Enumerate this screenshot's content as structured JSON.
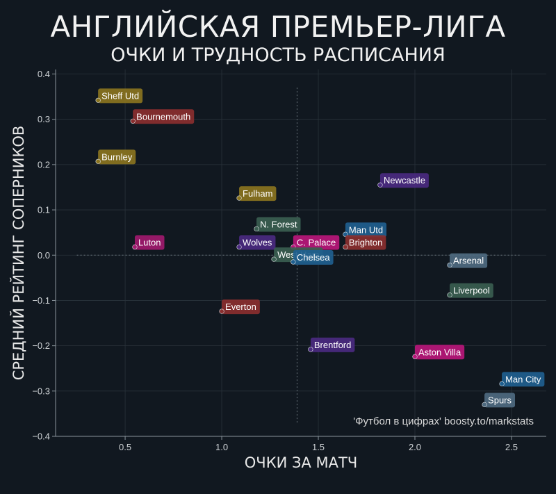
{
  "title": "АНГЛИЙСКАЯ ПРЕМЬЕР-ЛИГА",
  "subtitle": "ОЧКИ И ТРУДНОСТЬ РАСПИСАНИЯ",
  "credit": "'Футбол в цифрах' boosty.to/markstats",
  "chart_data": {
    "type": "scatter",
    "title": "АНГЛИЙСКАЯ ПРЕМЬЕР-ЛИГА",
    "subtitle": "ОЧКИ И ТРУДНОСТЬ РАСПИСАНИЯ",
    "xlabel": "ОЧКИ ЗА МАТЧ",
    "ylabel": "СРЕДНИЙ РЕЙТИНГ СОПЕРНИКОВ",
    "xlim": [
      0.14,
      2.68
    ],
    "ylim": [
      -0.4,
      0.41
    ],
    "xticks": [
      0.5,
      1.0,
      1.5,
      2.0,
      2.5
    ],
    "xtick_labels": [
      "0.5",
      "1.0",
      "1.5",
      "2.0",
      "2.5"
    ],
    "yticks": [
      -0.4,
      -0.3,
      -0.2,
      -0.1,
      0.0,
      0.1,
      0.2,
      0.3,
      0.4
    ],
    "ytick_labels": [
      "−0.4",
      "−0.3",
      "−0.2",
      "−0.1",
      "0.0",
      "0.1",
      "0.2",
      "0.3",
      "0.4"
    ],
    "reference_lines": {
      "x": 1.39,
      "y": 0.0
    },
    "grid": true,
    "points": [
      {
        "team": "Sheff Utd",
        "x": 0.36,
        "y": 0.342,
        "color": "#8a7420"
      },
      {
        "team": "Bournemouth",
        "x": 0.54,
        "y": 0.296,
        "color": "#8a2f2f"
      },
      {
        "team": "Burnley",
        "x": 0.36,
        "y": 0.207,
        "color": "#8a7420"
      },
      {
        "team": "Fulham",
        "x": 1.09,
        "y": 0.126,
        "color": "#8a7420"
      },
      {
        "team": "Newcastle",
        "x": 1.82,
        "y": 0.155,
        "color": "#4a2a80"
      },
      {
        "team": "N. Forest",
        "x": 1.18,
        "y": 0.058,
        "color": "#3a5e50"
      },
      {
        "team": "Man Utd",
        "x": 1.64,
        "y": 0.046,
        "color": "#1f5f8f"
      },
      {
        "team": "Luton",
        "x": 0.55,
        "y": 0.018,
        "color": "#a01a6e"
      },
      {
        "team": "Wolves",
        "x": 1.09,
        "y": 0.018,
        "color": "#4a2a80"
      },
      {
        "team": "C. Palace",
        "x": 1.37,
        "y": 0.018,
        "color": "#b8177a"
      },
      {
        "team": "Brighton",
        "x": 1.64,
        "y": 0.018,
        "color": "#8a2f2f"
      },
      {
        "team": "West Ham",
        "x": 1.27,
        "y": -0.009,
        "color": "#3a5e50"
      },
      {
        "team": "Chelsea",
        "x": 1.37,
        "y": -0.015,
        "color": "#1f5f8f"
      },
      {
        "team": "Arsenal",
        "x": 2.18,
        "y": -0.022,
        "color": "#4e6a80"
      },
      {
        "team": "Liverpool",
        "x": 2.18,
        "y": -0.088,
        "color": "#3a5e50"
      },
      {
        "team": "Everton",
        "x": 1.0,
        "y": -0.124,
        "color": "#8a2f2f"
      },
      {
        "team": "Brentford",
        "x": 1.46,
        "y": -0.208,
        "color": "#4a2a80"
      },
      {
        "team": "Aston Villa",
        "x": 2.0,
        "y": -0.224,
        "color": "#b8177a"
      },
      {
        "team": "Man City",
        "x": 2.45,
        "y": -0.284,
        "color": "#1f5f8f"
      },
      {
        "team": "Spurs",
        "x": 2.36,
        "y": -0.33,
        "color": "#4e6a80"
      }
    ]
  }
}
